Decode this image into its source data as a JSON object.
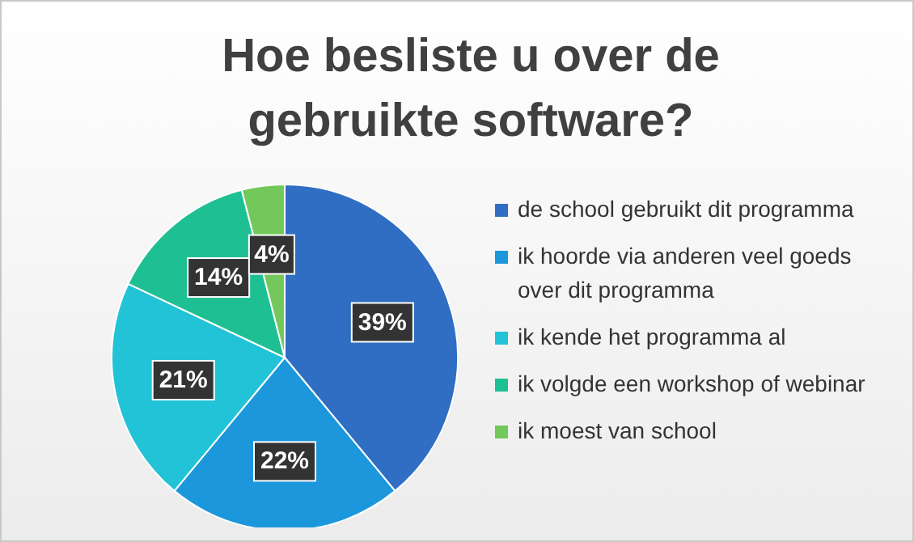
{
  "chart_data": {
    "type": "pie",
    "title": "Hoe besliste u over de gebruikte software?",
    "categories": [
      "de school gebruikt dit programma",
      "ik hoorde via anderen veel goeds over dit programma",
      "ik kende het programma al",
      "ik volgde een workshop of webinar",
      "ik moest van school"
    ],
    "values": [
      39,
      22,
      21,
      14,
      4
    ],
    "value_labels": [
      "39%",
      "22%",
      "21%",
      "14%",
      "4%"
    ],
    "colors": [
      "#2f6ec2",
      "#1c97db",
      "#22c3d6",
      "#1fbf94",
      "#72c85a"
    ],
    "legend": "right"
  }
}
